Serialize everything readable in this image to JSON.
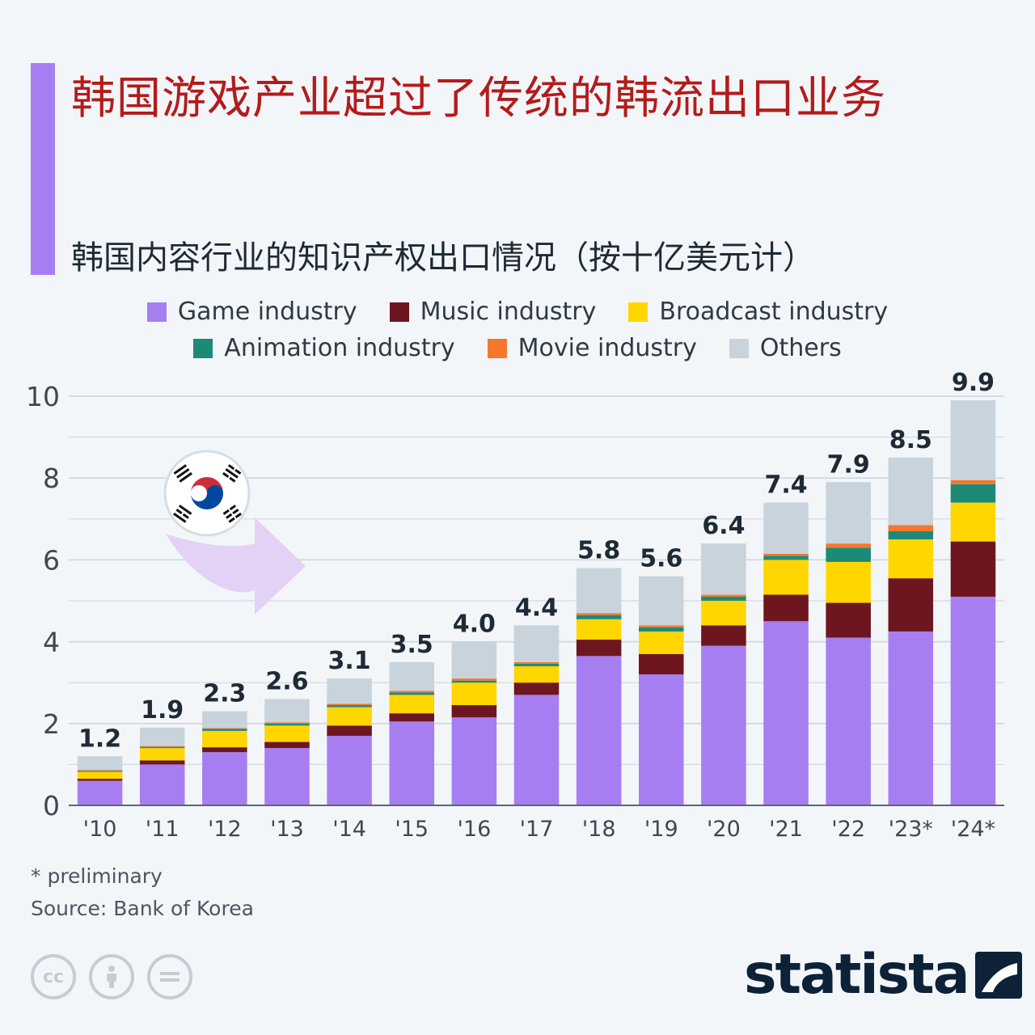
{
  "title": "韩国游戏产业超过了传统的韩流出口业务",
  "subtitle": "韩国内容行业的知识产权出口情况（按十亿美元计）",
  "legend": [
    {
      "label": "Game industry",
      "color": "#a77ef2"
    },
    {
      "label": "Music industry",
      "color": "#6e1620"
    },
    {
      "label": "Broadcast industry",
      "color": "#ffd600"
    },
    {
      "label": "Animation industry",
      "color": "#1d8a78"
    },
    {
      "label": "Movie industry",
      "color": "#f5772d"
    },
    {
      "label": "Others",
      "color": "#c8d3db"
    }
  ],
  "chart_data": {
    "type": "bar",
    "stacked": true,
    "ylim": [
      0,
      10
    ],
    "yticks": [
      0,
      2,
      4,
      6,
      8,
      10
    ],
    "categories": [
      "'10",
      "'11",
      "'12",
      "'13",
      "'14",
      "'15",
      "'16",
      "'17",
      "'18",
      "'19",
      "'20",
      "'21",
      "'22",
      "'23*",
      "'24*"
    ],
    "totals": [
      "1.2",
      "1.9",
      "2.3",
      "2.6",
      "3.1",
      "3.5",
      "4.0",
      "4.4",
      "5.8",
      "5.6",
      "6.4",
      "7.4",
      "7.9",
      "8.5",
      "9.9"
    ],
    "series": [
      {
        "name": "Game industry",
        "color": "#a77ef2",
        "values": [
          0.6,
          1.0,
          1.3,
          1.4,
          1.7,
          2.05,
          2.15,
          2.7,
          3.65,
          3.2,
          3.9,
          4.5,
          4.1,
          4.25,
          5.1
        ]
      },
      {
        "name": "Music industry",
        "color": "#6e1620",
        "values": [
          0.05,
          0.1,
          0.12,
          0.15,
          0.25,
          0.2,
          0.3,
          0.3,
          0.4,
          0.5,
          0.5,
          0.65,
          0.85,
          1.3,
          1.35
        ]
      },
      {
        "name": "Broadcast industry",
        "color": "#ffd600",
        "values": [
          0.17,
          0.3,
          0.4,
          0.4,
          0.45,
          0.45,
          0.55,
          0.4,
          0.5,
          0.55,
          0.6,
          0.85,
          1.0,
          0.95,
          0.95
        ]
      },
      {
        "name": "Animation industry",
        "color": "#1d8a78",
        "values": [
          0.02,
          0.03,
          0.05,
          0.05,
          0.05,
          0.06,
          0.05,
          0.06,
          0.1,
          0.1,
          0.1,
          0.1,
          0.35,
          0.2,
          0.45
        ]
      },
      {
        "name": "Movie industry",
        "color": "#f5772d",
        "values": [
          0.02,
          0.02,
          0.02,
          0.03,
          0.03,
          0.04,
          0.05,
          0.04,
          0.05,
          0.05,
          0.05,
          0.05,
          0.1,
          0.15,
          0.1
        ]
      },
      {
        "name": "Others",
        "color": "#c8d3db",
        "values": [
          0.34,
          0.45,
          0.41,
          0.57,
          0.62,
          0.7,
          0.9,
          0.9,
          1.1,
          1.2,
          1.25,
          1.25,
          1.5,
          1.65,
          1.95
        ]
      }
    ]
  },
  "footnote": "* preliminary",
  "source": "Source: Bank of Korea",
  "brand": "statista"
}
